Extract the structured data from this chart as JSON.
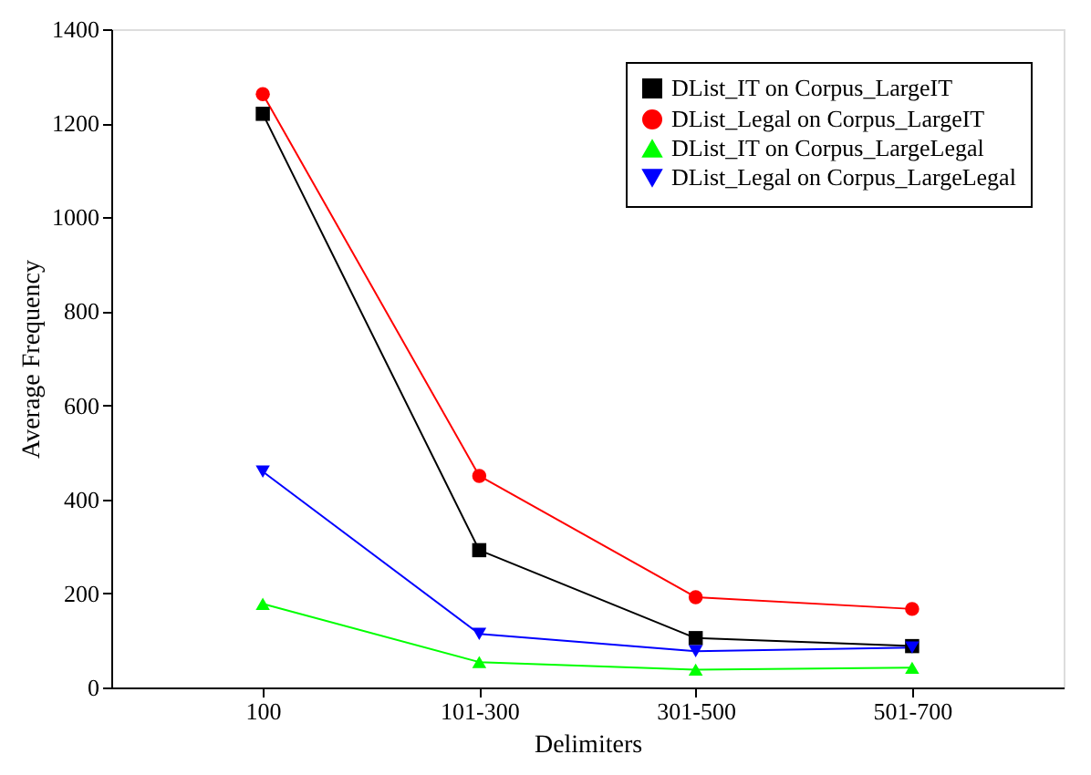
{
  "chart_data": {
    "type": "line",
    "xlabel": "Delimiters",
    "ylabel": "Average Frequency",
    "categories": [
      "100",
      "101-300",
      "301-500",
      "501-700"
    ],
    "ylim": [
      0,
      1400
    ],
    "yticks": [
      0,
      200,
      400,
      600,
      800,
      1000,
      1200,
      1400
    ],
    "grid": false,
    "legend": "top right",
    "series": [
      {
        "name": "DList_IT on Corpus_LargeIT",
        "color": "#000000",
        "marker": "square",
        "values": [
          1220,
          292,
          105,
          88
        ]
      },
      {
        "name": "DList_Legal on Corpus_LargeIT",
        "color": "#ff0000",
        "marker": "circle",
        "values": [
          1262,
          450,
          192,
          167
        ]
      },
      {
        "name": "DList_IT on Corpus_LargeLegal",
        "color": "#00ff00",
        "marker": "triangle",
        "values": [
          178,
          54,
          38,
          42
        ]
      },
      {
        "name": "DList_Legal on Corpus_LargeLegal",
        "color": "#0000ff",
        "marker": "triangle-down",
        "values": [
          459,
          114,
          77,
          85
        ]
      }
    ]
  }
}
